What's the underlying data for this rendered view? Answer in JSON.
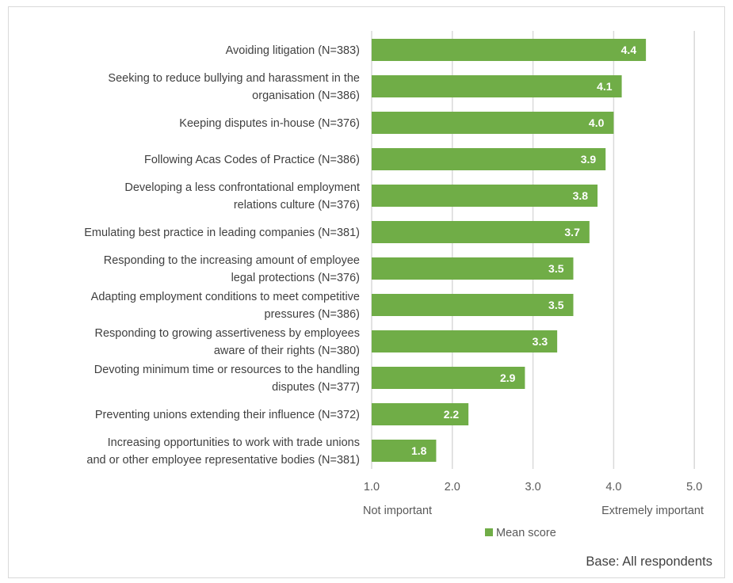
{
  "chart_data": {
    "type": "bar",
    "orientation": "horizontal",
    "categories": [
      [
        "Avoiding litigation (N=383)"
      ],
      [
        "Seeking to reduce bullying and harassment in the",
        "organisation (N=386)"
      ],
      [
        "Keeping disputes in-house (N=376)"
      ],
      [
        "Following Acas Codes of Practice (N=386)"
      ],
      [
        "Developing a less confrontational employment",
        "relations culture (N=376)"
      ],
      [
        "Emulating best practice in leading companies (N=381)"
      ],
      [
        "Responding to the increasing amount of employee",
        "legal protections (N=376)"
      ],
      [
        "Adapting employment conditions to meet competitive",
        "pressures (N=386)"
      ],
      [
        "Responding to growing assertiveness by employees",
        "aware of their rights (N=380)"
      ],
      [
        "Devoting minimum time or resources to the handling",
        "disputes (N=377)"
      ],
      [
        "Preventing unions extending their influence (N=372)"
      ],
      [
        "Increasing opportunities to work with trade unions",
        "and or other employee representative bodies (N=381)"
      ]
    ],
    "series": [
      {
        "name": "Mean score",
        "values": [
          4.4,
          4.1,
          4.0,
          3.9,
          3.8,
          3.7,
          3.5,
          3.5,
          3.3,
          2.9,
          2.2,
          1.8
        ],
        "labels": [
          "4.4",
          "4.1",
          "4.0",
          "3.9",
          "3.8",
          "3.7",
          "3.5",
          "3.5",
          "3.3",
          "2.9",
          "2.2",
          "1.8"
        ]
      }
    ],
    "xlim": [
      1.0,
      5.0
    ],
    "xticks": [
      "1.0",
      "2.0",
      "3.0",
      "4.0",
      "5.0"
    ],
    "x_low_label": "Not important",
    "x_high_label": "Extremely important",
    "grid": "vertical",
    "legend": "bottom",
    "bar_color": "#70ad47",
    "note": "Base: All respondents"
  }
}
